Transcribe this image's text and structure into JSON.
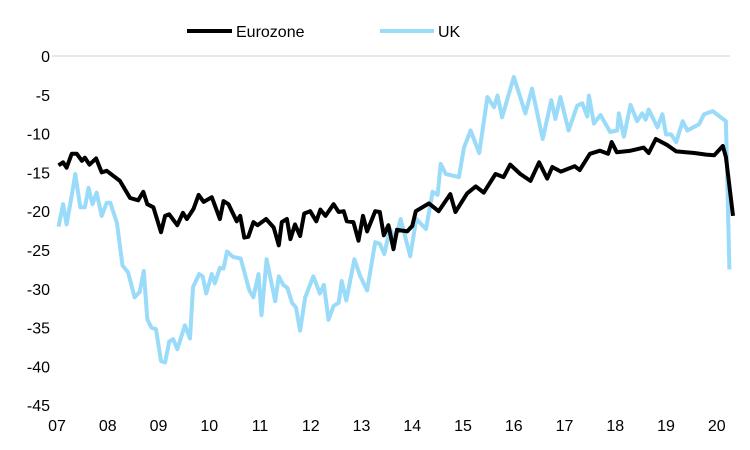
{
  "chart_data": {
    "type": "line",
    "title": "",
    "xlabel": "",
    "ylabel": "",
    "ylim": [
      -45,
      0
    ],
    "yticks": [
      "0",
      "-5",
      "-10",
      "-15",
      "-20",
      "-25",
      "-30",
      "-35",
      "-40",
      "-45"
    ],
    "xticks": [
      "07",
      "08",
      "09",
      "10",
      "11",
      "12",
      "13",
      "14",
      "15",
      "16",
      "17",
      "18",
      "19",
      "20"
    ],
    "grid": "zero line only",
    "legend": "top-center",
    "series": [
      {
        "name": "Eurozone",
        "color": "#000000",
        "points": [
          [
            2007.03,
            -14.1
          ],
          [
            2007.12,
            -13.7
          ],
          [
            2007.19,
            -14.4
          ],
          [
            2007.29,
            -12.6
          ],
          [
            2007.39,
            -12.6
          ],
          [
            2007.49,
            -13.5
          ],
          [
            2007.55,
            -13.1
          ],
          [
            2007.64,
            -14
          ],
          [
            2007.77,
            -13.2
          ],
          [
            2007.88,
            -15
          ],
          [
            2007.98,
            -14.8
          ],
          [
            2008.24,
            -16.1
          ],
          [
            2008.44,
            -18.3
          ],
          [
            2008.6,
            -18.6
          ],
          [
            2008.7,
            -17.5
          ],
          [
            2008.78,
            -19.1
          ],
          [
            2008.9,
            -19.5
          ],
          [
            2009.05,
            -22.7
          ],
          [
            2009.13,
            -20.6
          ],
          [
            2009.21,
            -20.4
          ],
          [
            2009.37,
            -21.8
          ],
          [
            2009.48,
            -20.2
          ],
          [
            2009.56,
            -21
          ],
          [
            2009.69,
            -19.7
          ],
          [
            2009.79,
            -17.9
          ],
          [
            2009.89,
            -18.8
          ],
          [
            2010.05,
            -18.2
          ],
          [
            2010.21,
            -21
          ],
          [
            2010.28,
            -18.7
          ],
          [
            2010.38,
            -19.1
          ],
          [
            2010.54,
            -21.3
          ],
          [
            2010.61,
            -20.6
          ],
          [
            2010.69,
            -23.4
          ],
          [
            2010.77,
            -23.3
          ],
          [
            2010.87,
            -21.4
          ],
          [
            2010.95,
            -21.8
          ],
          [
            2011.12,
            -21
          ],
          [
            2011.27,
            -22.1
          ],
          [
            2011.37,
            -24.4
          ],
          [
            2011.43,
            -21.4
          ],
          [
            2011.53,
            -21
          ],
          [
            2011.6,
            -23.6
          ],
          [
            2011.69,
            -21.7
          ],
          [
            2011.79,
            -23.2
          ],
          [
            2011.87,
            -20.3
          ],
          [
            2011.99,
            -20
          ],
          [
            2012.11,
            -21.3
          ],
          [
            2012.19,
            -19.8
          ],
          [
            2012.29,
            -20.6
          ],
          [
            2012.45,
            -19.1
          ],
          [
            2012.55,
            -20.1
          ],
          [
            2012.65,
            -20
          ],
          [
            2012.71,
            -21.3
          ],
          [
            2012.84,
            -21.4
          ],
          [
            2012.94,
            -23.8
          ],
          [
            2013.03,
            -20.6
          ],
          [
            2013.11,
            -22.6
          ],
          [
            2013.27,
            -20
          ],
          [
            2013.36,
            -20.1
          ],
          [
            2013.44,
            -23.1
          ],
          [
            2013.53,
            -21.8
          ],
          [
            2013.63,
            -24.9
          ],
          [
            2013.7,
            -22.4
          ],
          [
            2013.9,
            -22.6
          ],
          [
            2014.0,
            -21.9
          ],
          [
            2014.07,
            -20
          ],
          [
            2014.33,
            -19
          ],
          [
            2014.52,
            -20
          ],
          [
            2014.75,
            -17.8
          ],
          [
            2014.85,
            -20.1
          ],
          [
            2015.08,
            -17.7
          ],
          [
            2015.25,
            -16.8
          ],
          [
            2015.41,
            -17.6
          ],
          [
            2015.64,
            -15.2
          ],
          [
            2015.8,
            -15.6
          ],
          [
            2015.93,
            -14
          ],
          [
            2016.13,
            -15.2
          ],
          [
            2016.33,
            -16.1
          ],
          [
            2016.5,
            -13.7
          ],
          [
            2016.66,
            -15.8
          ],
          [
            2016.76,
            -14.3
          ],
          [
            2016.93,
            -14.9
          ],
          [
            2017.2,
            -14.2
          ],
          [
            2017.3,
            -14.7
          ],
          [
            2017.5,
            -12.6
          ],
          [
            2017.7,
            -12.2
          ],
          [
            2017.86,
            -12.6
          ],
          [
            2017.93,
            -11.1
          ],
          [
            2018.03,
            -12.4
          ],
          [
            2018.3,
            -12.2
          ],
          [
            2018.56,
            -11.8
          ],
          [
            2018.66,
            -12.5
          ],
          [
            2018.8,
            -10.7
          ],
          [
            2019.03,
            -11.5
          ],
          [
            2019.2,
            -12.3
          ],
          [
            2019.56,
            -12.5
          ],
          [
            2019.79,
            -12.7
          ],
          [
            2019.95,
            -12.8
          ],
          [
            2020.12,
            -11.6
          ],
          [
            2020.18,
            -13
          ],
          [
            2020.32,
            -20.6
          ]
        ]
      },
      {
        "name": "UK",
        "color": "#99dbf8",
        "points": [
          [
            2007.03,
            -22
          ],
          [
            2007.12,
            -19.1
          ],
          [
            2007.19,
            -21.7
          ],
          [
            2007.29,
            -18
          ],
          [
            2007.36,
            -15.2
          ],
          [
            2007.46,
            -19.5
          ],
          [
            2007.55,
            -19.5
          ],
          [
            2007.62,
            -17
          ],
          [
            2007.7,
            -19.1
          ],
          [
            2007.78,
            -17.6
          ],
          [
            2007.88,
            -20.6
          ],
          [
            2007.98,
            -18.9
          ],
          [
            2008.05,
            -18.9
          ],
          [
            2008.18,
            -21.5
          ],
          [
            2008.29,
            -27
          ],
          [
            2008.4,
            -27.9
          ],
          [
            2008.53,
            -31.1
          ],
          [
            2008.63,
            -30.4
          ],
          [
            2008.71,
            -27.7
          ],
          [
            2008.78,
            -33.9
          ],
          [
            2008.86,
            -35
          ],
          [
            2008.95,
            -35.2
          ],
          [
            2009.05,
            -39.3
          ],
          [
            2009.13,
            -39.5
          ],
          [
            2009.21,
            -36.8
          ],
          [
            2009.29,
            -36.5
          ],
          [
            2009.37,
            -37.8
          ],
          [
            2009.52,
            -34.7
          ],
          [
            2009.62,
            -36.4
          ],
          [
            2009.68,
            -29.8
          ],
          [
            2009.8,
            -28.1
          ],
          [
            2009.87,
            -28.4
          ],
          [
            2009.94,
            -30.6
          ],
          [
            2010.05,
            -28.1
          ],
          [
            2010.11,
            -29.3
          ],
          [
            2010.21,
            -27.3
          ],
          [
            2010.28,
            -27.4
          ],
          [
            2010.35,
            -25.2
          ],
          [
            2010.47,
            -25.9
          ],
          [
            2010.62,
            -26.1
          ],
          [
            2010.79,
            -30.2
          ],
          [
            2010.87,
            -31.1
          ],
          [
            2010.97,
            -28.1
          ],
          [
            2011.03,
            -33.4
          ],
          [
            2011.13,
            -26.2
          ],
          [
            2011.3,
            -31.6
          ],
          [
            2011.37,
            -28.4
          ],
          [
            2011.46,
            -29.5
          ],
          [
            2011.54,
            -29.9
          ],
          [
            2011.63,
            -31.8
          ],
          [
            2011.71,
            -32.4
          ],
          [
            2011.79,
            -35.4
          ],
          [
            2011.89,
            -31.1
          ],
          [
            2012.05,
            -28.4
          ],
          [
            2012.18,
            -30.6
          ],
          [
            2012.26,
            -29.5
          ],
          [
            2012.35,
            -34
          ],
          [
            2012.45,
            -32.2
          ],
          [
            2012.55,
            -31.8
          ],
          [
            2012.61,
            -29
          ],
          [
            2012.7,
            -31.5
          ],
          [
            2012.86,
            -26.2
          ],
          [
            2012.97,
            -28.3
          ],
          [
            2013.11,
            -30.2
          ],
          [
            2013.27,
            -24
          ],
          [
            2013.36,
            -24.2
          ],
          [
            2013.45,
            -25.5
          ],
          [
            2013.56,
            -22.3
          ],
          [
            2013.67,
            -23.6
          ],
          [
            2013.77,
            -21
          ],
          [
            2013.96,
            -25.8
          ],
          [
            2014.08,
            -21
          ],
          [
            2014.27,
            -22.3
          ],
          [
            2014.4,
            -17.5
          ],
          [
            2014.5,
            -17.9
          ],
          [
            2014.56,
            -13.9
          ],
          [
            2014.66,
            -15.2
          ],
          [
            2014.92,
            -15.6
          ],
          [
            2015.02,
            -11.8
          ],
          [
            2015.15,
            -9.6
          ],
          [
            2015.32,
            -12.5
          ],
          [
            2015.48,
            -5.3
          ],
          [
            2015.61,
            -6.6
          ],
          [
            2015.68,
            -5.1
          ],
          [
            2015.77,
            -7.9
          ],
          [
            2016.0,
            -2.7
          ],
          [
            2016.23,
            -7.4
          ],
          [
            2016.36,
            -4.2
          ],
          [
            2016.57,
            -10.7
          ],
          [
            2016.74,
            -5.7
          ],
          [
            2016.82,
            -8.1
          ],
          [
            2016.92,
            -5.3
          ],
          [
            2017.08,
            -9.6
          ],
          [
            2017.25,
            -6.4
          ],
          [
            2017.35,
            -6.1
          ],
          [
            2017.45,
            -7.8
          ],
          [
            2017.48,
            -5.1
          ],
          [
            2017.58,
            -8.7
          ],
          [
            2017.71,
            -7.6
          ],
          [
            2017.9,
            -9.8
          ],
          [
            2018.04,
            -9.6
          ],
          [
            2018.07,
            -7.4
          ],
          [
            2018.17,
            -10.4
          ],
          [
            2018.3,
            -6.3
          ],
          [
            2018.43,
            -8.4
          ],
          [
            2018.53,
            -7.4
          ],
          [
            2018.6,
            -8.2
          ],
          [
            2018.66,
            -6.9
          ],
          [
            2018.83,
            -9.2
          ],
          [
            2018.93,
            -7.5
          ],
          [
            2019.0,
            -10.1
          ],
          [
            2019.1,
            -10.1
          ],
          [
            2019.2,
            -11.1
          ],
          [
            2019.33,
            -8.4
          ],
          [
            2019.42,
            -9.6
          ],
          [
            2019.65,
            -8.8
          ],
          [
            2019.75,
            -7.5
          ],
          [
            2019.92,
            -7.1
          ],
          [
            2020.18,
            -8.4
          ],
          [
            2020.25,
            -27.5
          ]
        ]
      }
    ]
  }
}
